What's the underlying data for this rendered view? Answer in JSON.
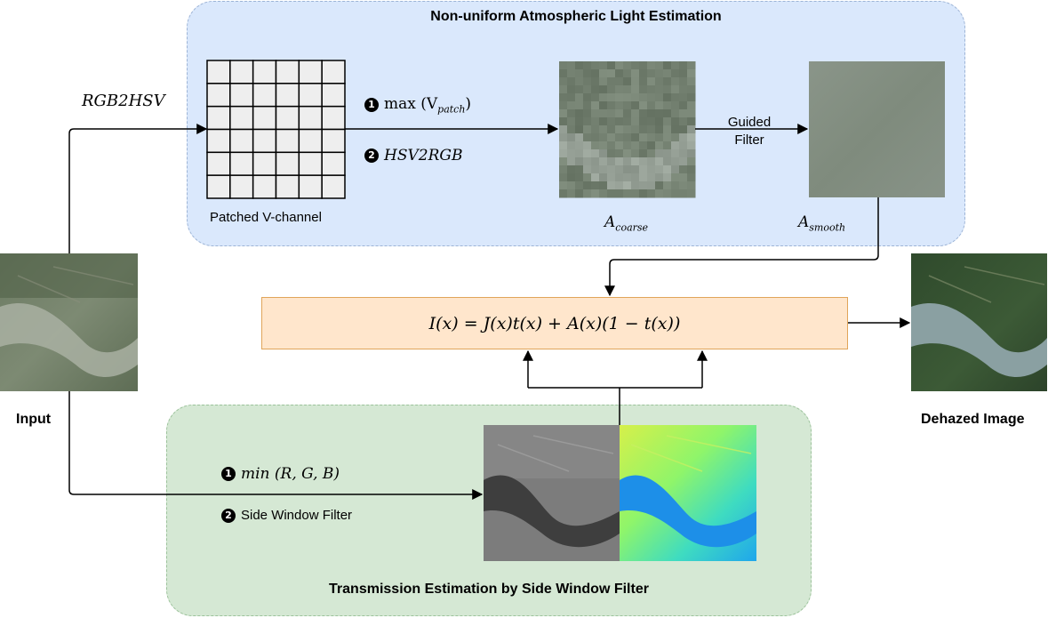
{
  "atmospheric_panel": {
    "title": "Non-uniform Atmospheric Light Estimation",
    "grid_label": "Patched V-channel",
    "step1_num": "1",
    "step1_text": "max (V",
    "step1_sub": "patch",
    "step1_close": ")",
    "step2_num": "2",
    "step2_text": "HSV2RGB",
    "guided_filter_line1": "Guided",
    "guided_filter_line2": "Filter",
    "coarse_label_main": "A",
    "coarse_label_sub": "coarse",
    "smooth_label_main": "A",
    "smooth_label_sub": "smooth",
    "grid_rows": 6,
    "grid_cols": 6
  },
  "input": {
    "label": "Input",
    "conversion_label": "RGB2HSV"
  },
  "equation": {
    "text": "I(x) = J(x)t(x) + A(x)(1 − t(x))"
  },
  "output": {
    "label": "Dehazed Image"
  },
  "transmission_panel": {
    "title": "Transmission Estimation by Side Window Filter",
    "step1_num": "1",
    "step1_text": "min (R, G, B)",
    "step2_num": "2",
    "step2_text": "Side Window Filter"
  },
  "colors": {
    "blue_panel": "#dae8fc",
    "green_panel": "#d5e8d4",
    "equation_box": "#ffe6cc",
    "grid_fill": "#eeeeee"
  }
}
